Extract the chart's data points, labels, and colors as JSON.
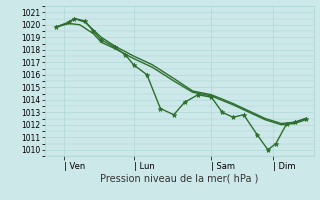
{
  "xlabel": "Pression niveau de la mer( hPa )",
  "ylim": [
    1009.5,
    1021.5
  ],
  "yticks": [
    1010,
    1011,
    1012,
    1013,
    1014,
    1015,
    1016,
    1017,
    1018,
    1019,
    1020,
    1021
  ],
  "xtick_labels": [
    "| Ven",
    "| Lun",
    "| Sam",
    "| Dim"
  ],
  "xtick_positions": [
    0.07,
    0.33,
    0.62,
    0.85
  ],
  "bg_color": "#cce8e8",
  "grid_color": "#aad4d4",
  "line_color": "#2d6e2d",
  "line_width": 1.0,
  "series": [
    {
      "x": [
        0.04,
        0.09,
        0.13,
        0.18,
        0.21,
        0.26,
        0.33,
        0.4,
        0.48,
        0.55,
        0.62,
        0.7,
        0.75,
        0.82,
        0.88,
        0.93,
        0.97
      ],
      "y": [
        1019.8,
        1020.1,
        1020.0,
        1019.3,
        1018.6,
        1018.1,
        1017.3,
        1016.6,
        1015.5,
        1014.6,
        1014.3,
        1013.6,
        1013.1,
        1012.4,
        1012.0,
        1012.1,
        1012.4
      ],
      "has_markers": false
    },
    {
      "x": [
        0.04,
        0.09,
        0.11,
        0.15,
        0.21,
        0.26,
        0.33,
        0.4,
        0.48,
        0.55,
        0.62,
        0.7,
        0.75,
        0.82,
        0.88,
        0.93,
        0.97
      ],
      "y": [
        1019.8,
        1020.2,
        1020.5,
        1020.2,
        1019.0,
        1018.3,
        1017.5,
        1016.8,
        1015.7,
        1014.7,
        1014.4,
        1013.7,
        1013.2,
        1012.5,
        1012.1,
        1012.2,
        1012.5
      ],
      "has_markers": false
    },
    {
      "x": [
        0.04,
        0.09,
        0.11,
        0.15,
        0.18,
        0.21,
        0.26,
        0.3,
        0.33,
        0.38,
        0.43,
        0.48,
        0.52,
        0.57,
        0.62,
        0.66,
        0.7,
        0.74,
        0.79,
        0.83,
        0.86,
        0.9,
        0.93,
        0.97
      ],
      "y": [
        1019.8,
        1020.2,
        1020.5,
        1020.3,
        1019.5,
        1018.8,
        1018.2,
        1017.6,
        1016.8,
        1016.0,
        1013.3,
        1012.8,
        1013.8,
        1014.4,
        1014.2,
        1013.0,
        1012.6,
        1012.8,
        1011.2,
        1010.0,
        1010.5,
        1012.1,
        1012.2,
        1012.5
      ],
      "has_markers": true
    }
  ]
}
